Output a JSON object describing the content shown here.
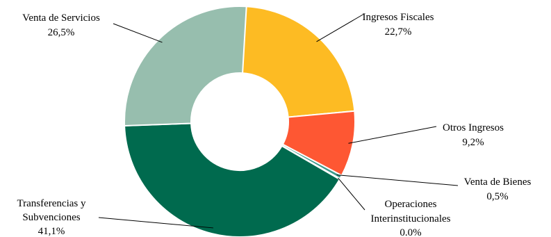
{
  "chart_data": {
    "type": "pie",
    "variant": "donut",
    "title": "",
    "slices": [
      {
        "label": "Ingresos Fiscales",
        "value_label": "22,7%",
        "value": 22.7,
        "color": "#FDBB23"
      },
      {
        "label": "Otros Ingresos",
        "value_label": "9,2%",
        "value": 9.2,
        "color": "#FE5733"
      },
      {
        "label": "Venta de Bienes",
        "value_label": "0,5%",
        "value": 0.5,
        "color": "#3D9A8B"
      },
      {
        "label": "Operaciones Interinstitucionales",
        "value_label": "0.0%",
        "value": 0.0,
        "color": "#1F6E5E"
      },
      {
        "label": "Transferencias y Subvenciones",
        "value_label": "41,1%",
        "value": 41.1,
        "color": "#006A4E"
      },
      {
        "label": "Venta de Servicios",
        "value_label": "26,5%",
        "value": 26.5,
        "color": "#97BEAE"
      }
    ],
    "legend": "none"
  }
}
